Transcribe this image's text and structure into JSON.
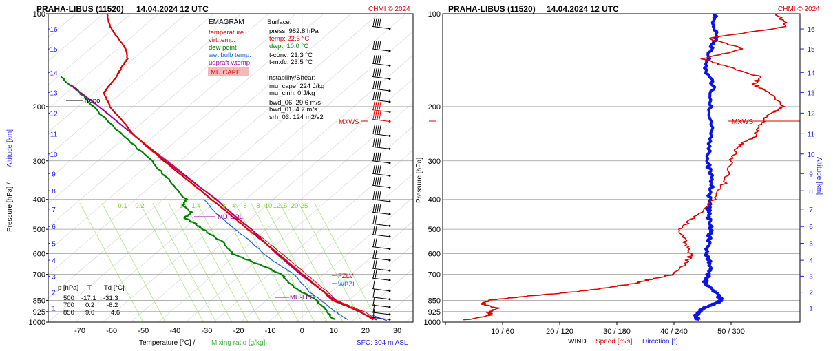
{
  "colors": {
    "temperature": "#e00000",
    "virt_temp": "#e00000",
    "dew_point": "#008000",
    "wet_bulb": "#1e64d2",
    "updraft": "#a000a0",
    "mixing": "#8fe04a",
    "altitude": "#1e1ee8",
    "speed": "#e00000",
    "direction": "#0a14e6",
    "grid": "#9a9a9a"
  },
  "left": {
    "title": "PRAHA-LIBUS (11520)",
    "time": "14.04.2024 12 UTC",
    "copyright": "CHMI © 2024",
    "pressure_ticks": [
      {
        "p": 100,
        "label": "100"
      },
      {
        "p": 200,
        "label": "200"
      },
      {
        "p": 300,
        "label": "300"
      },
      {
        "p": 400,
        "label": "400"
      },
      {
        "p": 500,
        "label": "500"
      },
      {
        "p": 600,
        "label": "600"
      },
      {
        "p": 700,
        "label": "700"
      },
      {
        "p": 850,
        "label": "850"
      },
      {
        "p": 925,
        "label": "925"
      },
      {
        "p": 1000,
        "label": "1000"
      }
    ],
    "temp_ticks": [
      "-70",
      "-60",
      "-50",
      "-40",
      "-30",
      "-20",
      "-10",
      "0",
      "10",
      "20",
      "30"
    ],
    "alt_ticks": [
      "1",
      "2",
      "3",
      "4",
      "5",
      "6",
      "7",
      "8",
      "9",
      "10",
      "11",
      "12",
      "13",
      "14",
      "15",
      "16"
    ],
    "mix_labels": [
      "0.1",
      "0.2",
      "1",
      "1.4",
      "2",
      "3",
      "4",
      "6",
      "8",
      "10",
      "12",
      "15",
      "20",
      "25"
    ],
    "xlabel_temp": "Temperature [°C]  /",
    "xlabel_mix": "Mixing ratio [g/kg]",
    "ylabel_p": "Pressure [hPa]  /",
    "ylabel_alt": "Altitude [km]",
    "sfc": "SFC: 304 m ASL",
    "legend": {
      "title": "EMAGRAM",
      "items": [
        {
          "label": "temperature",
          "color": "#e00000"
        },
        {
          "label": "virt.temp.",
          "color": "#e00000"
        },
        {
          "label": "dew point",
          "color": "#008000"
        },
        {
          "label": "wet bulb temp.",
          "color": "#1e64d2"
        },
        {
          "label": "udpraft v.temp.",
          "color": "#a000a0"
        }
      ],
      "cape_label": "MU CAPE"
    },
    "surface": {
      "title": "Surface:",
      "press": "press: 982.8 hPa",
      "temp": "temp: 22.5 °C",
      "dwpt": "dwpt: 10.0 °C",
      "tconv": "t-conv: 21.3 °C",
      "tmxfc": "t-mxfc: 23.5 °C"
    },
    "instability": {
      "title": "Instability/Shear:",
      "mu_cape": "mu_cape: 224 J/kg",
      "mu_cinh": "mu_cinh: 0 J/kg",
      "bwd_06": "bwd_06: 29.6 m/s",
      "bwd_01": "bwd_01: 4.7 m/s",
      "srh_03": "srh_03: 124 m2/s2"
    },
    "annotations": {
      "tropo": "Tropo",
      "mu_eql": "MU-EQL",
      "mu_lfc": "MU-LFC",
      "fzlv": "FZLV",
      "wbzl": "WBZL",
      "mxws": "MXWS"
    },
    "table": {
      "header": [
        "p [hPa]",
        "T",
        "Td [°C]"
      ],
      "rows": [
        [
          "500",
          "-17.1",
          "-31.3"
        ],
        [
          "700",
          "0.2",
          "-6.2"
        ],
        [
          "850",
          "9.6",
          "4.6"
        ]
      ]
    }
  },
  "right": {
    "title": "PRAHA-LIBUS (11520)",
    "time": "14.04.2024 12 UTC",
    "copyright": "CHMI © 2024",
    "xticks": [
      "10 / 60",
      "20 / 120",
      "30 / 180",
      "40 / 240",
      "50 / 300"
    ],
    "xlabel_wind": "WIND",
    "xlabel_speed": "Speed [m/s]",
    "xlabel_dir": "Direction [°]",
    "ylabel_p": "Pressure [hPa]",
    "ylabel_alt": "Altitude [km]",
    "mxws": "MXWS"
  },
  "chart_data": [
    {
      "type": "line",
      "title": "PRAHA-LIBUS (11520) 14.04.2024 12 UTC",
      "subtitle": "EMAGRAM",
      "xlabel": "Temperature [°C] / Mixing ratio [g/kg]",
      "ylabel": "Pressure [hPa] / Altitude [km]",
      "xlim": [
        -80,
        35
      ],
      "ylim": [
        1000,
        100
      ],
      "yscale": "log",
      "series": [
        {
          "name": "temperature",
          "p": [
            982.8,
            925,
            850,
            800,
            750,
            700,
            650,
            600,
            550,
            500,
            450,
            400,
            350,
            300,
            250,
            200,
            180,
            170,
            160,
            150,
            140,
            130,
            120,
            110,
            100
          ],
          "t": [
            22.5,
            18.5,
            9.6,
            7.0,
            3.6,
            0.2,
            -3.5,
            -7.5,
            -12.0,
            -17.1,
            -22.5,
            -28.5,
            -35.5,
            -43.5,
            -52.5,
            -60.5,
            -62.5,
            -60.5,
            -58.5,
            -57.0,
            -55.0,
            -55.5,
            -58.0,
            -60.5,
            -61.5
          ]
        },
        {
          "name": "dew point",
          "p": [
            982.8,
            925,
            850,
            800,
            750,
            700,
            650,
            600,
            550,
            500,
            480,
            460,
            440,
            420,
            400,
            350,
            300,
            250,
            200,
            180,
            170,
            160
          ],
          "t": [
            10.0,
            8.0,
            4.6,
            0,
            -4.0,
            -6.2,
            -13.5,
            -22.0,
            -25.0,
            -31.3,
            -33.5,
            -37.0,
            -35.0,
            -37.5,
            -36.5,
            -41.5,
            -47.5,
            -56.0,
            -66.0,
            -70.0,
            -73.0,
            -76.0
          ]
        },
        {
          "name": "wet bulb temp.",
          "p": [
            982.8,
            925,
            850,
            800,
            750,
            700,
            650,
            600,
            550,
            500,
            450,
            400
          ],
          "t": [
            14.5,
            10.5,
            6.0,
            2.5,
            0.0,
            -2.5,
            -7.5,
            -12.0,
            -16.0,
            -21.0,
            -26.5,
            -31.0
          ]
        },
        {
          "name": "udpraft v.temp.",
          "p": [
            982.8,
            925,
            850,
            700,
            600,
            500,
            450,
            400,
            350,
            300,
            250,
            200,
            170
          ],
          "t": [
            23.5,
            18.0,
            10.5,
            -0.5,
            -8.0,
            -16.0,
            -21.5,
            -27.0,
            -34.5,
            -43.0,
            -52.5,
            -64.0,
            -73.0
          ]
        }
      ]
    },
    {
      "type": "line",
      "title": "PRAHA-LIBUS (11520) 14.04.2024 12 UTC",
      "xlabel": "WIND  Speed [m/s]  Direction [°]",
      "ylabel": "Pressure [hPa] / Altitude [km]",
      "ylim": [
        1000,
        100
      ],
      "yscale": "log",
      "series": [
        {
          "name": "Speed [m/s]",
          "p": [
            982.8,
            950,
            925,
            900,
            875,
            850,
            825,
            800,
            775,
            750,
            725,
            700,
            650,
            600,
            550,
            500,
            450,
            400,
            350,
            300,
            270,
            250,
            230,
            210,
            200,
            180,
            170,
            160,
            150,
            140,
            130,
            120,
            110,
            100
          ],
          "v": [
            3.5,
            8,
            7.5,
            9,
            6.5,
            7.5,
            14,
            22,
            28,
            33,
            36,
            40,
            42,
            43,
            42,
            41,
            44,
            47,
            49,
            50,
            51,
            54,
            55,
            57,
            59,
            57,
            54,
            55,
            50,
            45,
            52,
            46,
            60,
            58
          ]
        },
        {
          "name": "Direction [°]",
          "p": [
            982.8,
            950,
            925,
            900,
            875,
            850,
            800,
            750,
            700,
            650,
            600,
            550,
            500,
            450,
            400,
            350,
            300,
            250,
            200,
            170,
            150,
            130,
            120,
            110,
            100
          ],
          "v": [
            265,
            263,
            268,
            270,
            282,
            290,
            284,
            272,
            276,
            278,
            274,
            276,
            279,
            276,
            277,
            280,
            275,
            279,
            278,
            281,
            272,
            279,
            285,
            282,
            283
          ]
        }
      ]
    }
  ]
}
